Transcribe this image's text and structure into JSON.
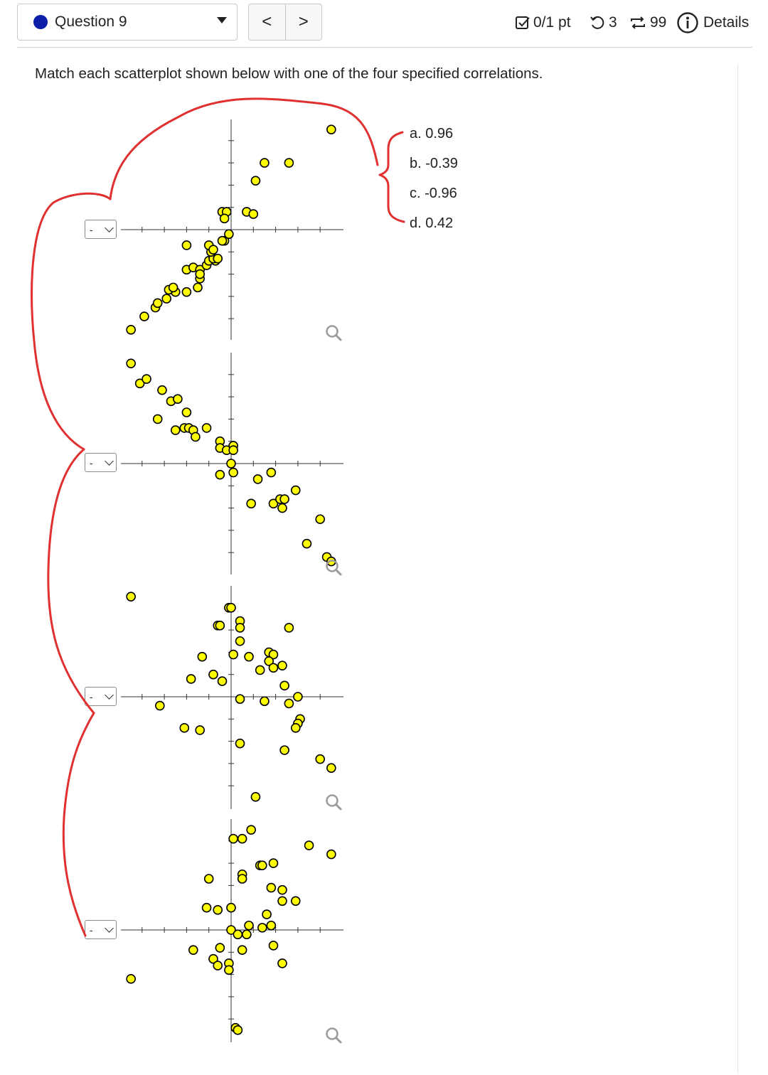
{
  "header": {
    "question_label": "Question 9",
    "prev_label": "<",
    "next_label": ">",
    "score_label": "0/1 pt",
    "retries": "3",
    "attempts": "99",
    "details_label": "Details"
  },
  "prompt": "Match each scatterplot shown below with one of the four specified correlations.",
  "options": [
    {
      "label": "a. 0.96"
    },
    {
      "label": "b. -0.39"
    },
    {
      "label": "c. -0.96"
    },
    {
      "label": "d. 0.42"
    }
  ],
  "dropdowns": [
    {
      "value": "-"
    },
    {
      "value": "-"
    },
    {
      "value": "-"
    },
    {
      "value": "-"
    }
  ],
  "colors": {
    "point_fill": "#ffff00",
    "annotation": "#e03030",
    "accent": "#0a1ea8"
  },
  "chart_data": [
    {
      "type": "scatter",
      "points": [
        [
          -4.5,
          -4.5
        ],
        [
          -3.9,
          -3.9
        ],
        [
          -3.4,
          -3.5
        ],
        [
          -3.3,
          -3.3
        ],
        [
          -2.9,
          -3.1
        ],
        [
          -2.5,
          -2.8
        ],
        [
          -2.8,
          -2.7
        ],
        [
          -2.6,
          -2.6
        ],
        [
          -2.0,
          -2.8
        ],
        [
          -1.5,
          -2.6
        ],
        [
          -1.4,
          -2.2
        ],
        [
          -2.0,
          -1.8
        ],
        [
          -1.7,
          -1.7
        ],
        [
          -1.4,
          -1.8
        ],
        [
          -1.4,
          -2.0
        ],
        [
          -1.1,
          -1.6
        ],
        [
          -1.0,
          -1.4
        ],
        [
          -0.7,
          -1.4
        ],
        [
          -0.8,
          -1.3
        ],
        [
          -0.6,
          -1.3
        ],
        [
          -0.9,
          -1.0
        ],
        [
          -1.0,
          -0.7
        ],
        [
          -0.8,
          -0.9
        ],
        [
          -0.3,
          -0.5
        ],
        [
          -0.4,
          -0.5
        ],
        [
          -0.1,
          -0.2
        ],
        [
          -2.0,
          -0.7
        ],
        [
          -0.4,
          0.8
        ],
        [
          -0.2,
          0.8
        ],
        [
          -0.3,
          0.5
        ],
        [
          0.7,
          0.8
        ],
        [
          1.0,
          0.7
        ],
        [
          1.1,
          2.2
        ],
        [
          1.5,
          3.0
        ],
        [
          2.6,
          3.0
        ],
        [
          4.5,
          4.5
        ]
      ]
    },
    {
      "type": "scatter",
      "points": [
        [
          -4.5,
          4.5
        ],
        [
          -4.1,
          3.6
        ],
        [
          -3.8,
          3.8
        ],
        [
          -3.1,
          3.3
        ],
        [
          -2.7,
          2.8
        ],
        [
          -2.4,
          2.9
        ],
        [
          -3.3,
          2.0
        ],
        [
          -2.0,
          2.3
        ],
        [
          -2.5,
          1.5
        ],
        [
          -2.1,
          1.6
        ],
        [
          -1.9,
          1.6
        ],
        [
          -1.7,
          1.5
        ],
        [
          -1.6,
          1.2
        ],
        [
          -1.1,
          1.6
        ],
        [
          -0.5,
          1.0
        ],
        [
          -0.5,
          0.7
        ],
        [
          -0.2,
          0.6
        ],
        [
          0.1,
          0.8
        ],
        [
          0.1,
          0.6
        ],
        [
          -0.5,
          -0.5
        ],
        [
          0.0,
          0.0
        ],
        [
          0.1,
          -0.4
        ],
        [
          1.2,
          -0.7
        ],
        [
          1.8,
          -0.4
        ],
        [
          0.9,
          -1.8
        ],
        [
          1.9,
          -1.8
        ],
        [
          2.2,
          -1.6
        ],
        [
          2.4,
          -1.6
        ],
        [
          2.3,
          -2.0
        ],
        [
          2.9,
          -1.2
        ],
        [
          4.0,
          -2.5
        ],
        [
          3.4,
          -3.6
        ],
        [
          4.3,
          -4.2
        ],
        [
          4.5,
          -4.4
        ]
      ]
    },
    {
      "type": "scatter",
      "points": [
        [
          -4.5,
          4.5
        ],
        [
          -0.1,
          4.0
        ],
        [
          0.0,
          4.0
        ],
        [
          -0.6,
          3.2
        ],
        [
          -0.5,
          3.2
        ],
        [
          0.4,
          3.4
        ],
        [
          0.4,
          3.1
        ],
        [
          2.6,
          3.1
        ],
        [
          0.4,
          2.5
        ],
        [
          -1.3,
          1.8
        ],
        [
          0.1,
          1.9
        ],
        [
          0.8,
          1.8
        ],
        [
          1.7,
          2.0
        ],
        [
          1.9,
          1.9
        ],
        [
          1.7,
          1.6
        ],
        [
          1.3,
          1.2
        ],
        [
          1.9,
          1.3
        ],
        [
          2.3,
          1.4
        ],
        [
          -1.8,
          0.8
        ],
        [
          -0.8,
          1.0
        ],
        [
          -0.4,
          0.7
        ],
        [
          2.4,
          0.5
        ],
        [
          -3.2,
          -0.4
        ],
        [
          0.4,
          -0.1
        ],
        [
          1.5,
          -0.2
        ],
        [
          2.6,
          -0.3
        ],
        [
          3.0,
          0.0
        ],
        [
          3.1,
          -1.0
        ],
        [
          3.0,
          -1.2
        ],
        [
          2.9,
          -1.4
        ],
        [
          -2.1,
          -1.4
        ],
        [
          -1.4,
          -1.5
        ],
        [
          0.4,
          -2.1
        ],
        [
          2.4,
          -2.4
        ],
        [
          4.0,
          -2.8
        ],
        [
          4.5,
          -3.2
        ],
        [
          1.1,
          -4.5
        ]
      ]
    },
    {
      "type": "scatter",
      "points": [
        [
          0.9,
          4.5
        ],
        [
          0.1,
          4.1
        ],
        [
          0.5,
          4.1
        ],
        [
          3.5,
          3.8
        ],
        [
          4.5,
          3.4
        ],
        [
          1.3,
          2.9
        ],
        [
          1.4,
          2.9
        ],
        [
          1.9,
          3.0
        ],
        [
          0.5,
          2.5
        ],
        [
          0.5,
          2.3
        ],
        [
          -1.0,
          2.3
        ],
        [
          1.8,
          1.9
        ],
        [
          2.3,
          1.8
        ],
        [
          2.3,
          1.3
        ],
        [
          2.9,
          1.3
        ],
        [
          -1.1,
          1.0
        ],
        [
          -0.6,
          0.9
        ],
        [
          0.0,
          1.0
        ],
        [
          1.6,
          0.7
        ],
        [
          0.8,
          0.2
        ],
        [
          1.4,
          0.1
        ],
        [
          1.8,
          0.2
        ],
        [
          0.0,
          0.0
        ],
        [
          0.3,
          -0.2
        ],
        [
          0.7,
          -0.2
        ],
        [
          -1.7,
          -0.9
        ],
        [
          -0.5,
          -0.8
        ],
        [
          0.5,
          -0.9
        ],
        [
          1.9,
          -0.7
        ],
        [
          -0.8,
          -1.3
        ],
        [
          -0.6,
          -1.6
        ],
        [
          -0.1,
          -1.5
        ],
        [
          -0.1,
          -1.8
        ],
        [
          2.3,
          -1.5
        ],
        [
          -4.5,
          -2.2
        ],
        [
          0.2,
          -4.4
        ],
        [
          0.3,
          -4.5
        ]
      ]
    }
  ]
}
